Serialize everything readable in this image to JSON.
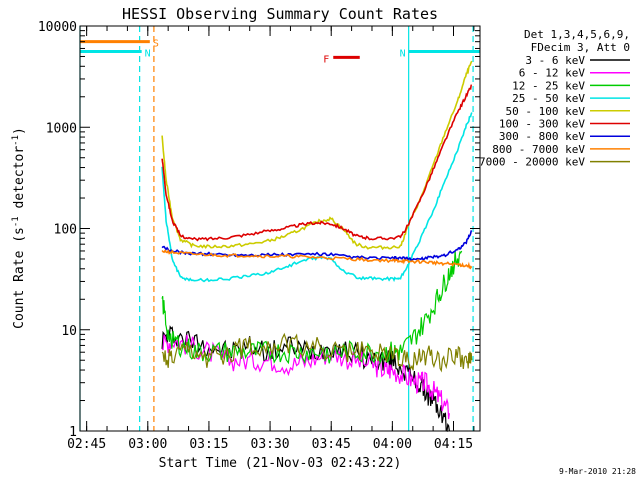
{
  "chart_data": {
    "type": "line",
    "title": "HESSI Observing Summary Count Rates",
    "xlabel": "Start Time (21-Nov-03 02:43:22)",
    "ylabel_main": "Count Rate (s",
    "ylabel_sup1": "-1",
    "ylabel_mid": " detector",
    "ylabel_sup2": "-1",
    "ylabel_end": ")",
    "footer": "9-Mar-2010 21:28",
    "y_scale": "log",
    "ylim": [
      1,
      10000
    ],
    "xlim_minutes": [
      163.37,
      261.5
    ],
    "grid": false,
    "legend_header": [
      "Det 1,3,4,5,6,9,",
      "FDecim 3, Att 0"
    ],
    "y_ticks": [
      {
        "value": 1,
        "label": "1"
      },
      {
        "value": 10,
        "label": "10"
      },
      {
        "value": 100,
        "label": "100"
      },
      {
        "value": 1000,
        "label": "1000"
      },
      {
        "value": 10000,
        "label": "10000"
      }
    ],
    "x_ticks": [
      {
        "value": 165,
        "label": "02:45"
      },
      {
        "value": 180,
        "label": "03:00"
      },
      {
        "value": 195,
        "label": "03:15"
      },
      {
        "value": 210,
        "label": "03:30"
      },
      {
        "value": 225,
        "label": "03:45"
      },
      {
        "value": 240,
        "label": "04:00"
      },
      {
        "value": 255,
        "label": "04:15"
      }
    ],
    "series": [
      {
        "name": "3 - 6 keV",
        "color": "#000000",
        "x": [
          183.5,
          186,
          190,
          195,
          200,
          205,
          210,
          215,
          220,
          225,
          230,
          235,
          238,
          240,
          243,
          246,
          248,
          250,
          252,
          254
        ],
        "y": [
          8,
          9,
          8,
          7,
          6,
          7,
          6,
          7,
          6,
          7,
          6,
          5,
          5,
          5,
          4,
          3,
          2.5,
          2,
          1.5,
          1
        ]
      },
      {
        "name": "6 - 12 keV",
        "color": "#ff00ff",
        "x": [
          183.5,
          186,
          190,
          195,
          200,
          205,
          210,
          215,
          220,
          225,
          230,
          235,
          238,
          240,
          243,
          246,
          248,
          250,
          252,
          254
        ],
        "y": [
          7,
          8,
          7,
          6,
          5,
          5,
          5,
          4.5,
          5,
          6,
          5,
          4.5,
          4,
          4,
          3.5,
          3,
          3,
          2.5,
          2,
          1.5
        ]
      },
      {
        "name": "12 - 25 keV",
        "color": "#00cc00",
        "x": [
          183.5,
          185,
          188,
          192,
          197,
          202,
          207,
          212,
          217,
          222,
          227,
          232,
          237,
          240,
          242,
          245,
          248,
          251,
          253,
          255,
          257
        ],
        "y": [
          20,
          9,
          7,
          6,
          6,
          6,
          6,
          6,
          6,
          6,
          6,
          6,
          6,
          6,
          6,
          8,
          12,
          20,
          30,
          45,
          60
        ]
      },
      {
        "name": "25 - 50 keV",
        "color": "#00e5e5",
        "x": [
          183.5,
          184.5,
          186,
          188,
          191,
          195,
          200,
          205,
          210,
          214,
          218,
          222,
          225,
          228,
          232,
          236,
          240,
          242,
          244,
          247,
          250,
          253,
          256,
          258,
          259.5
        ],
        "y": [
          400,
          120,
          50,
          33,
          31,
          31,
          32,
          34,
          37,
          42,
          48,
          52,
          50,
          38,
          32,
          32,
          32,
          32,
          45,
          80,
          150,
          300,
          600,
          1000,
          1400
        ]
      },
      {
        "name": "50 - 100 keV",
        "color": "#cccc00",
        "x": [
          183.5,
          184.5,
          186,
          188,
          191,
          195,
          200,
          205,
          210,
          214,
          218,
          222,
          225,
          228,
          231,
          234,
          238,
          242,
          244,
          247,
          250,
          253,
          256,
          258,
          259.5
        ],
        "y": [
          800,
          300,
          130,
          78,
          68,
          66,
          67,
          70,
          76,
          85,
          100,
          118,
          125,
          98,
          70,
          65,
          65,
          66,
          110,
          200,
          420,
          900,
          1800,
          3200,
          4500
        ]
      },
      {
        "name": "100 - 300 keV",
        "color": "#dd0000",
        "x": [
          183.5,
          184.5,
          186,
          188,
          191,
          195,
          200,
          205,
          210,
          214,
          218,
          222,
          225,
          228,
          231,
          234,
          238,
          242,
          244,
          247,
          250,
          253,
          256,
          258,
          259.5
        ],
        "y": [
          500,
          220,
          120,
          85,
          78,
          79,
          82,
          88,
          95,
          102,
          110,
          114,
          112,
          100,
          85,
          80,
          80,
          82,
          110,
          200,
          380,
          750,
          1400,
          2000,
          2600
        ]
      },
      {
        "name": "300 - 800 keV",
        "color": "#0000dd",
        "x": [
          183.5,
          186,
          190,
          195,
          200,
          205,
          210,
          215,
          220,
          225,
          230,
          235,
          240,
          242,
          244,
          247,
          250,
          253,
          256,
          258,
          259.5
        ],
        "y": [
          65,
          60,
          57,
          56,
          55,
          55,
          55,
          55,
          56,
          55,
          52,
          51,
          51,
          51,
          50,
          50,
          52,
          55,
          62,
          72,
          95
        ]
      },
      {
        "name": "800 - 7000 keV",
        "color": "#ff8000",
        "x": [
          183.5,
          186,
          190,
          195,
          200,
          205,
          210,
          215,
          220,
          225,
          230,
          235,
          240,
          242,
          244,
          247,
          250,
          253,
          256,
          258,
          259.5
        ],
        "y": [
          60,
          58,
          56,
          55,
          54,
          54,
          53,
          53,
          52,
          51,
          50,
          49,
          48,
          48,
          47,
          47,
          46,
          45,
          44,
          43,
          42
        ]
      },
      {
        "name": "7000 - 20000 keV",
        "color": "#808000",
        "x": [
          183.5,
          186,
          190,
          195,
          200,
          205,
          210,
          215,
          220,
          225,
          230,
          235,
          240,
          243,
          246,
          249,
          252,
          255,
          258,
          259.5
        ],
        "y": [
          5,
          5,
          6,
          5,
          6,
          7,
          7,
          7,
          7,
          6,
          6,
          6,
          6,
          5,
          5,
          6,
          5,
          6,
          5,
          5
        ]
      }
    ],
    "markers": [
      {
        "label": "S",
        "color": "#ff8000",
        "x_start": 163.37,
        "x_end": 180.5,
        "y": 7000
      },
      {
        "label": "N",
        "color": "#00e5e5",
        "x_start": 163.37,
        "x_end": 178.5,
        "y": 5600
      },
      {
        "label": "N",
        "color": "#00e5e5",
        "x_start": 244,
        "x_end": 261.5,
        "y": 5600
      },
      {
        "label": "F",
        "color": "#dd0000",
        "x_start": 225.5,
        "x_end": 232,
        "y": 4900
      }
    ],
    "vlines": [
      {
        "x": 163.37,
        "color": "#00e5e5",
        "style": "solid"
      },
      {
        "x": 178,
        "color": "#00e5e5",
        "style": "dashed"
      },
      {
        "x": 181.5,
        "color": "#ff8000",
        "style": "dashed"
      },
      {
        "x": 244,
        "color": "#00e5e5",
        "style": "solid"
      },
      {
        "x": 259.8,
        "color": "#00e5e5",
        "style": "dashed"
      }
    ]
  }
}
